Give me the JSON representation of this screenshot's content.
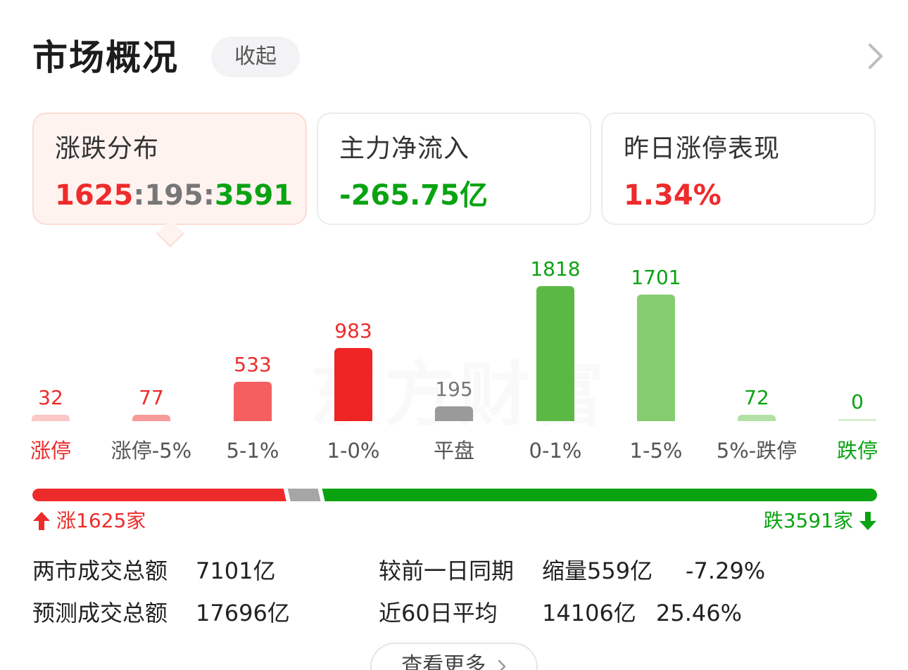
{
  "header": {
    "title": "市场概况",
    "collapse_label": "收起"
  },
  "cards": [
    {
      "title": "涨跌分布",
      "value_up": "1625",
      "sep1": ":",
      "value_flat": "195",
      "sep2": ":",
      "value_down": "3591"
    },
    {
      "title": "主力净流入",
      "value": "-265.75亿"
    },
    {
      "title": "昨日涨停表现",
      "value": "1.34%"
    }
  ],
  "chart_data": {
    "type": "bar",
    "categories": [
      "涨停",
      "涨停-5%",
      "5-1%",
      "1-0%",
      "平盘",
      "0-1%",
      "1-5%",
      "5%-跌停",
      "跌停"
    ],
    "values": [
      32,
      77,
      533,
      983,
      195,
      1818,
      1701,
      72,
      0
    ],
    "value_labels": [
      "32",
      "77",
      "533",
      "983",
      "195",
      "1818",
      "1701",
      "72",
      "0"
    ],
    "colors": [
      "#fbc7c7",
      "#f79a9a",
      "#f55f5f",
      "#ef2424",
      "#9a9a9a",
      "#5cb845",
      "#85cd6f",
      "#b2e0a5",
      "#d6efcf"
    ],
    "label_colors": [
      "#ee2b2b",
      "#ee2b2b",
      "#ee2b2b",
      "#ee2b2b",
      "#777777",
      "#0aa312",
      "#0aa312",
      "#0aa312",
      "#0aa312"
    ],
    "category_label_colors": [
      "#ee2b2b",
      "#555555",
      "#555555",
      "#555555",
      "#555555",
      "#555555",
      "#555555",
      "#555555",
      "#0aa312"
    ],
    "watermark": "东方财富"
  },
  "ratio_bar": {
    "up": 1625,
    "flat": 195,
    "down": 3591,
    "up_color": "#ee2b2b",
    "flat_color": "#a6a6a6",
    "down_color": "#0aa312"
  },
  "counts": {
    "up_text": "涨1625家",
    "down_text": "跌3591家"
  },
  "stats": {
    "row1": {
      "label": "两市成交总额",
      "value": "7101亿",
      "compare_label": "较前一日同期",
      "change_text": "缩量559亿",
      "change_pct": "-7.29%"
    },
    "row2": {
      "label": "预测成交总额",
      "value": "17696亿",
      "compare_label": "近60日平均",
      "avg_value": "14106亿",
      "avg_pct": "25.46%"
    }
  },
  "more_label": "查看更多",
  "colors": {
    "up": "#ee2b2b",
    "down": "#0aa312",
    "flat": "#777777"
  }
}
